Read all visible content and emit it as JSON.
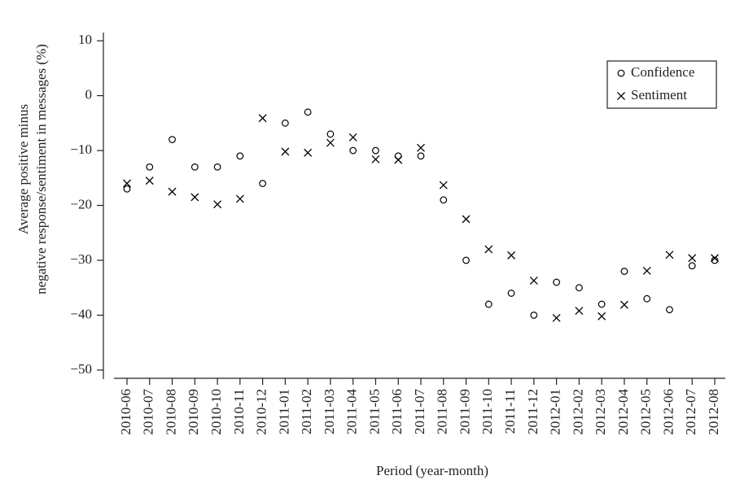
{
  "chart_data": {
    "type": "scatter",
    "xlabel": "Period (year-month)",
    "ylabel": [
      "Average positive minus",
      "negative response/sentiment in messages (%)"
    ],
    "categories": [
      "2010-06",
      "2010-07",
      "2010-08",
      "2010-09",
      "2010-10",
      "2010-11",
      "2010-12",
      "2011-01",
      "2011-02",
      "2011-03",
      "2011-04",
      "2011-05",
      "2011-06",
      "2011-07",
      "2011-08",
      "2011-09",
      "2011-10",
      "2011-11",
      "2011-12",
      "2012-01",
      "2012-02",
      "2012-03",
      "2012-04",
      "2012-05",
      "2012-06",
      "2012-07",
      "2012-08"
    ],
    "series": [
      {
        "name": "Confidence",
        "color": "#000000",
        "marker": "circle",
        "values": [
          -17,
          -13,
          -8,
          -13,
          -13,
          -11,
          -16,
          -5,
          -3,
          -7,
          -10,
          -10,
          -11,
          -11,
          -19,
          -30,
          -38,
          -36,
          -40,
          -34,
          -35,
          -38,
          -32,
          -37,
          -39,
          -31,
          -30
        ]
      },
      {
        "name": "Sentiment",
        "color": "#000000",
        "marker": "x",
        "values": [
          -16,
          -15.5,
          -17.5,
          -18.5,
          -19.8,
          -18.8,
          -4.1,
          -10.2,
          -10.4,
          -8.6,
          -7.6,
          -11.6,
          -11.7,
          -9.5,
          -16.3,
          -22.5,
          -28,
          -29.1,
          -33.7,
          -40.5,
          -39.2,
          -40.2,
          -38.1,
          -31.9,
          -29,
          -29.6,
          -29.6
        ]
      }
    ],
    "ylim": [
      -51.5,
      11.5
    ],
    "yticks": [
      10,
      0,
      {
        "value": -10,
        "label": "−10"
      },
      {
        "value": -20,
        "label": "−20"
      },
      {
        "value": -30,
        "label": "−30"
      },
      {
        "value": -40,
        "label": "−40"
      },
      {
        "value": -50,
        "label": "−50"
      }
    ],
    "grid": false,
    "legend": "upper right"
  }
}
